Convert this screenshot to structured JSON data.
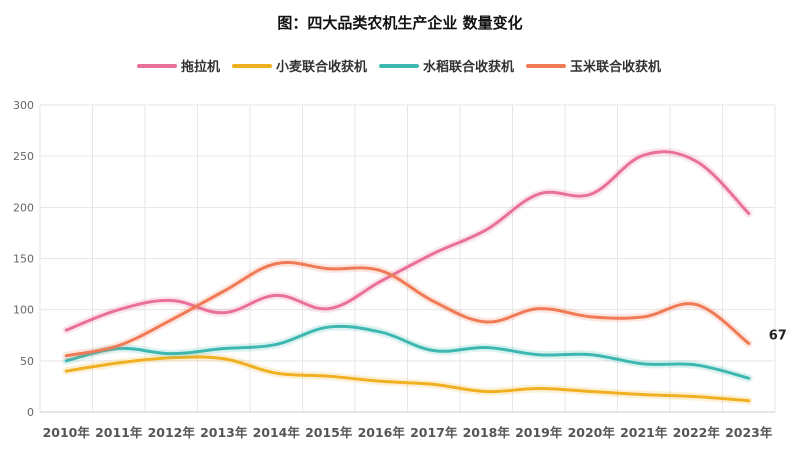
{
  "chart_data": {
    "type": "line",
    "title": "图：四大品类农机生产企业 数量变化",
    "categories": [
      "2010年",
      "2011年",
      "2012年",
      "2013年",
      "2014年",
      "2015年",
      "2016年",
      "2017年",
      "2018年",
      "2019年",
      "2020年",
      "2021年",
      "2022年",
      "2023年"
    ],
    "ylim": [
      0,
      300
    ],
    "yticks": [
      0,
      50,
      100,
      150,
      200,
      250,
      300
    ],
    "grid": true,
    "legend_position": "top-center",
    "series": [
      {
        "name": "拖拉机",
        "color": "#e8709a",
        "values": [
          80,
          100,
          109,
          97,
          114,
          101,
          128,
          155,
          178,
          213,
          213,
          251,
          245,
          194
        ]
      },
      {
        "name": "小麦联合收获机",
        "color": "#f0b022",
        "values": [
          40,
          48,
          53,
          52,
          38,
          35,
          30,
          27,
          20,
          23,
          20,
          17,
          15,
          11
        ]
      },
      {
        "name": "水稻联合收获机",
        "color": "#3db8b0",
        "values": [
          50,
          62,
          57,
          62,
          66,
          83,
          78,
          60,
          63,
          56,
          56,
          47,
          46,
          33
        ]
      },
      {
        "name": "玉米联合收获机",
        "color": "#f07a55",
        "values": [
          55,
          65,
          90,
          118,
          145,
          140,
          138,
          108,
          88,
          101,
          93,
          93,
          105,
          67
        ]
      }
    ],
    "annotations": [
      {
        "series": "玉米联合收获机",
        "category": "2023年",
        "text": "67"
      }
    ]
  }
}
